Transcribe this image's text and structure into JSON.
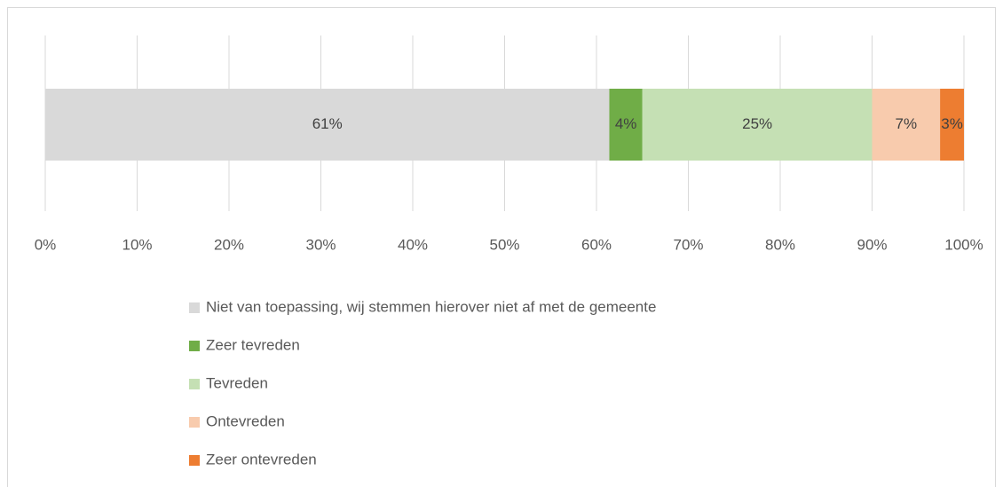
{
  "chart_data": {
    "type": "stacked_bar_horizontal",
    "series": [
      {
        "name": "Niet van toepassing, wij stemmen hierover niet af met de gemeente",
        "color": "#d9d9d9",
        "values": [
          61.4
        ],
        "value_labels": [
          "61%"
        ]
      },
      {
        "name": "Zeer tevreden",
        "color": "#70ad47",
        "values": [
          3.6
        ],
        "value_labels": [
          "4%"
        ]
      },
      {
        "name": "Tevreden",
        "color": "#c5e0b4",
        "values": [
          25
        ],
        "value_labels": [
          "25%"
        ]
      },
      {
        "name": "Ontevreden",
        "color": "#f8cbad",
        "values": [
          7.4
        ],
        "value_labels": [
          "7%"
        ]
      },
      {
        "name": "Zeer ontevreden",
        "color": "#ed7d31",
        "values": [
          2.6
        ],
        "value_labels": [
          "3%"
        ]
      }
    ],
    "xlim": [
      0,
      100
    ],
    "xticks": [
      {
        "value": 0,
        "label": "0%"
      },
      {
        "value": 10,
        "label": "10%"
      },
      {
        "value": 20,
        "label": "20%"
      },
      {
        "value": 30,
        "label": "30%"
      },
      {
        "value": 40,
        "label": "40%"
      },
      {
        "value": 50,
        "label": "50%"
      },
      {
        "value": 60,
        "label": "60%"
      },
      {
        "value": 70,
        "label": "70%"
      },
      {
        "value": 80,
        "label": "80%"
      },
      {
        "value": 90,
        "label": "90%"
      },
      {
        "value": 100,
        "label": "100%"
      }
    ],
    "grid": true,
    "legend": "bottom"
  }
}
